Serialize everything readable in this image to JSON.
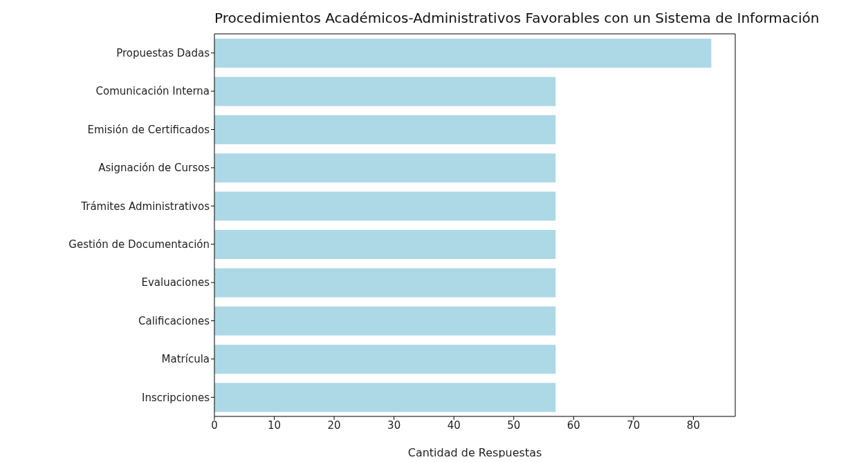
{
  "chart_data": {
    "type": "bar",
    "orientation": "horizontal",
    "title": "Procedimientos Académicos-Administrativos Favorables con un Sistema de Información",
    "xlabel": "Cantidad de Respuestas",
    "categories": [
      "Propuestas Dadas",
      "Comunicación Interna",
      "Emisión de Certificados",
      "Asignación de Cursos",
      "Trámites Administrativos",
      "Gestión de Documentación",
      "Evaluaciones",
      "Calificaciones",
      "Matrícula",
      "Inscripciones"
    ],
    "values": [
      83,
      57,
      57,
      57,
      57,
      57,
      57,
      57,
      57,
      57
    ],
    "color": "#add8e6",
    "xlim": [
      0,
      87
    ],
    "xticks": [
      0,
      10,
      20,
      30,
      40,
      50,
      60,
      70,
      80
    ],
    "grid": false,
    "legend": false
  }
}
